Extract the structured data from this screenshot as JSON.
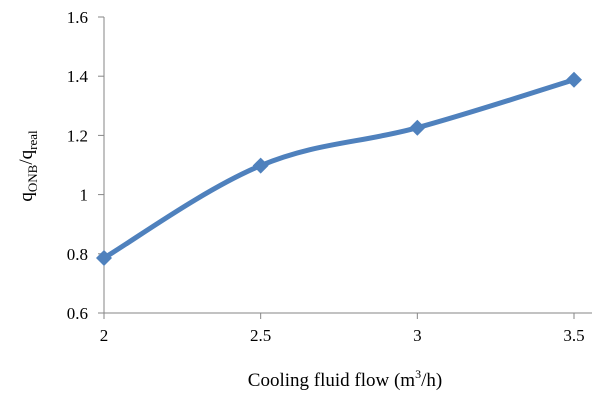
{
  "chart_data": {
    "type": "line",
    "title": "",
    "xlabel": {
      "main": "Cooling fluid flow (m",
      "sup": "3",
      "tail": "/h)"
    },
    "ylabel": {
      "q1": "q",
      "sub1": "ONB",
      "slash": "/q",
      "sub2": "real"
    },
    "x": [
      2,
      2.5,
      3,
      3.5
    ],
    "x_tick_labels": [
      "2",
      "2.5",
      "3",
      "3.5"
    ],
    "y_ticks": [
      0.6,
      0.8,
      1,
      1.2,
      1.4,
      1.6
    ],
    "y_tick_labels": [
      "0.6",
      "0.8",
      "1",
      "1.2",
      "1.4",
      "1.6"
    ],
    "series": [
      {
        "values": [
          0.786,
          1.098,
          1.226,
          1.388
        ]
      }
    ],
    "xlim": [
      2,
      3.5
    ],
    "ylim": [
      0.6,
      1.6
    ],
    "grid": false,
    "legend": "none",
    "line_color": "#4F81BD"
  }
}
